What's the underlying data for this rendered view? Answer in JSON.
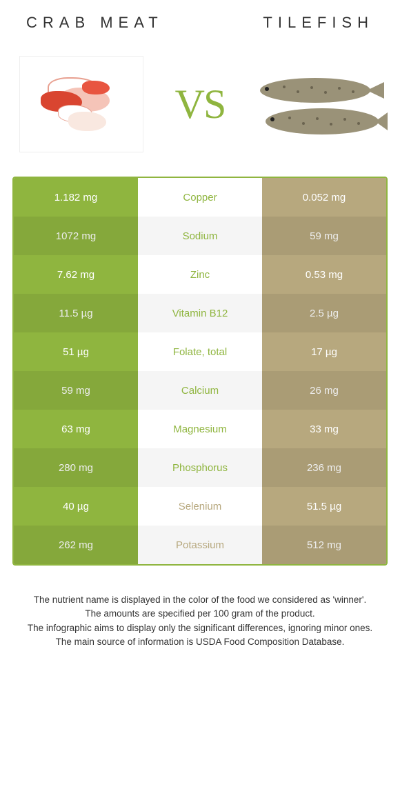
{
  "titles": {
    "left": "Crab meat",
    "right": "Tilefish"
  },
  "vs": "VS",
  "colors": {
    "left": "#8fb53f",
    "right": "#b7a87e",
    "accent": "#8fb53f"
  },
  "rows": [
    {
      "left": "1.182 mg",
      "mid": "Copper",
      "right": "0.052 mg",
      "winner": "left"
    },
    {
      "left": "1072 mg",
      "mid": "Sodium",
      "right": "59 mg",
      "winner": "left"
    },
    {
      "left": "7.62 mg",
      "mid": "Zinc",
      "right": "0.53 mg",
      "winner": "left"
    },
    {
      "left": "11.5 µg",
      "mid": "Vitamin B12",
      "right": "2.5 µg",
      "winner": "left"
    },
    {
      "left": "51 µg",
      "mid": "Folate, total",
      "right": "17 µg",
      "winner": "left"
    },
    {
      "left": "59 mg",
      "mid": "Calcium",
      "right": "26 mg",
      "winner": "left"
    },
    {
      "left": "63 mg",
      "mid": "Magnesium",
      "right": "33 mg",
      "winner": "left"
    },
    {
      "left": "280 mg",
      "mid": "Phosphorus",
      "right": "236 mg",
      "winner": "left"
    },
    {
      "left": "40 µg",
      "mid": "Selenium",
      "right": "51.5 µg",
      "winner": "right"
    },
    {
      "left": "262 mg",
      "mid": "Potassium",
      "right": "512 mg",
      "winner": "right"
    }
  ],
  "footer": [
    "The nutrient name is displayed in the color of the food we considered as 'winner'.",
    "The amounts are specified per 100 gram of the product.",
    "The infographic aims to display only the significant differences, ignoring minor ones.",
    "The main source of information is USDA Food Composition Database."
  ]
}
